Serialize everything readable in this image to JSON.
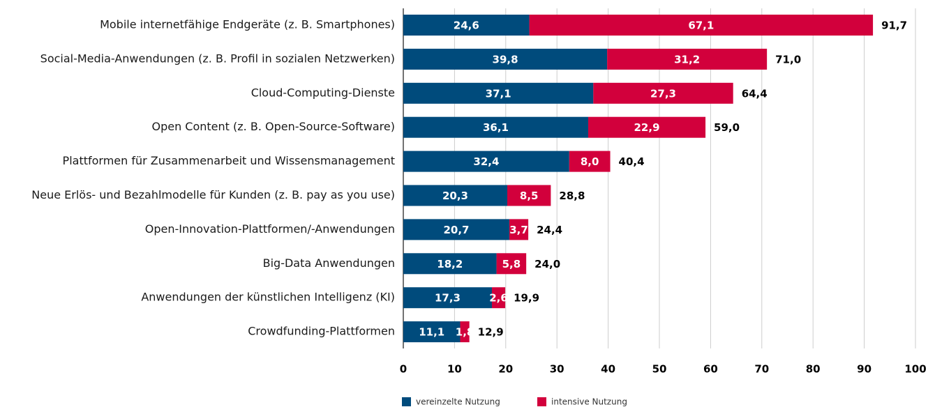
{
  "chart_data": {
    "type": "stacked_barh",
    "categories": [
      "Mobile internetfähige Endgeräte (z. B. Smartphones)",
      "Social-Media-Anwendungen (z. B. Profil in sozialen Netzwerken)",
      "Cloud-Computing-Dienste",
      "Open Content (z. B. Open-Source-Software)",
      "Plattformen für Zusammenarbeit und Wissensmanagement",
      "Neue Erlös- und Bezahlmodelle für Kunden (z. B. pay as you use)",
      "Open-Innovation-Plattformen/-Anwendungen",
      "Big-Data Anwendungen",
      "Anwendungen der künstlichen Intelligenz (KI)",
      "Crowdfunding-Plattformen"
    ],
    "series": [
      {
        "name": "vereinzelte Nutzung",
        "color": "#004b7c",
        "values": [
          24.6,
          39.8,
          37.1,
          36.1,
          32.4,
          20.3,
          20.7,
          18.2,
          17.3,
          11.1
        ],
        "value_labels": [
          "24,6",
          "39,8",
          "37,1",
          "36,1",
          "32,4",
          "20,3",
          "20,7",
          "18,2",
          "17,3",
          "11,1"
        ]
      },
      {
        "name": "intensive Nutzung",
        "color": "#d2003c",
        "values": [
          67.1,
          31.2,
          27.3,
          22.9,
          8.0,
          8.5,
          3.7,
          5.8,
          2.6,
          1.8
        ],
        "value_labels": [
          "67,1",
          "31,2",
          "27,3",
          "22,9",
          "8,0",
          "8,5",
          "3,7",
          "5,8",
          "2,6",
          "1,8"
        ]
      }
    ],
    "totals": [
      91.7,
      71.0,
      64.4,
      59.0,
      40.4,
      28.8,
      24.4,
      24.0,
      19.9,
      12.9
    ],
    "total_labels": [
      "91,7",
      "71,0",
      "64,4",
      "59,0",
      "40,4",
      "28,8",
      "24,4",
      "24,0",
      "19,9",
      "12,9"
    ],
    "xlim": [
      0,
      100
    ],
    "xticks": [
      0,
      10,
      20,
      30,
      40,
      50,
      60,
      70,
      80,
      90,
      100
    ],
    "grid": true
  }
}
